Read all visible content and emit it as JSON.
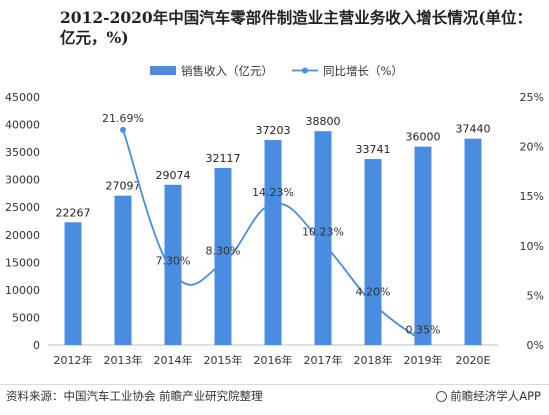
{
  "chart_data": {
    "type": "bar",
    "title": "2012-2020年中国汽车零部件制造业主营业务收入增长情况(单位：亿元，%)",
    "categories": [
      "2012年",
      "2013年",
      "2014年",
      "2015年",
      "2016年",
      "2017年",
      "2018年",
      "2019年",
      "2020E"
    ],
    "series": [
      {
        "name": "销售收入（亿元）",
        "type": "bar",
        "axis": "left",
        "color": "#4a8de0",
        "values": [
          22267,
          27097,
          29074,
          32117,
          37203,
          38800,
          33741,
          36000,
          37440
        ],
        "labels": [
          "22267",
          "27097",
          "29074",
          "32117",
          "37203",
          "38800",
          "33741",
          "36000",
          "37440"
        ]
      },
      {
        "name": "同比增长（%）",
        "type": "line",
        "axis": "right",
        "color": "#4a8de0",
        "values": [
          null,
          21.69,
          7.3,
          8.3,
          14.23,
          10.23,
          4.2,
          0.35,
          null
        ],
        "labels": [
          "",
          "21.69%",
          "7.30%",
          "8.30%",
          "14.23%",
          "10.23%",
          "4.20%",
          "0.35%",
          ""
        ]
      }
    ],
    "yleft": {
      "ylim": [
        0,
        45000
      ],
      "ticks": [
        0,
        5000,
        10000,
        15000,
        20000,
        25000,
        30000,
        35000,
        40000,
        45000
      ],
      "tick_labels": [
        "0",
        "5000",
        "10000",
        "15000",
        "20000",
        "25000",
        "30000",
        "35000",
        "40000",
        "45000"
      ]
    },
    "yright": {
      "ylim": [
        0,
        25
      ],
      "ticks": [
        0,
        5,
        10,
        15,
        20,
        25
      ],
      "tick_labels": [
        "0%",
        "5%",
        "10%",
        "15%",
        "20%",
        "25%"
      ]
    },
    "legend": "top-center",
    "grid": false
  },
  "footer": {
    "source": "资料来源：中国汽车工业协会 前瞻产业研究院整理",
    "brand": "前瞻经济学人APP"
  }
}
